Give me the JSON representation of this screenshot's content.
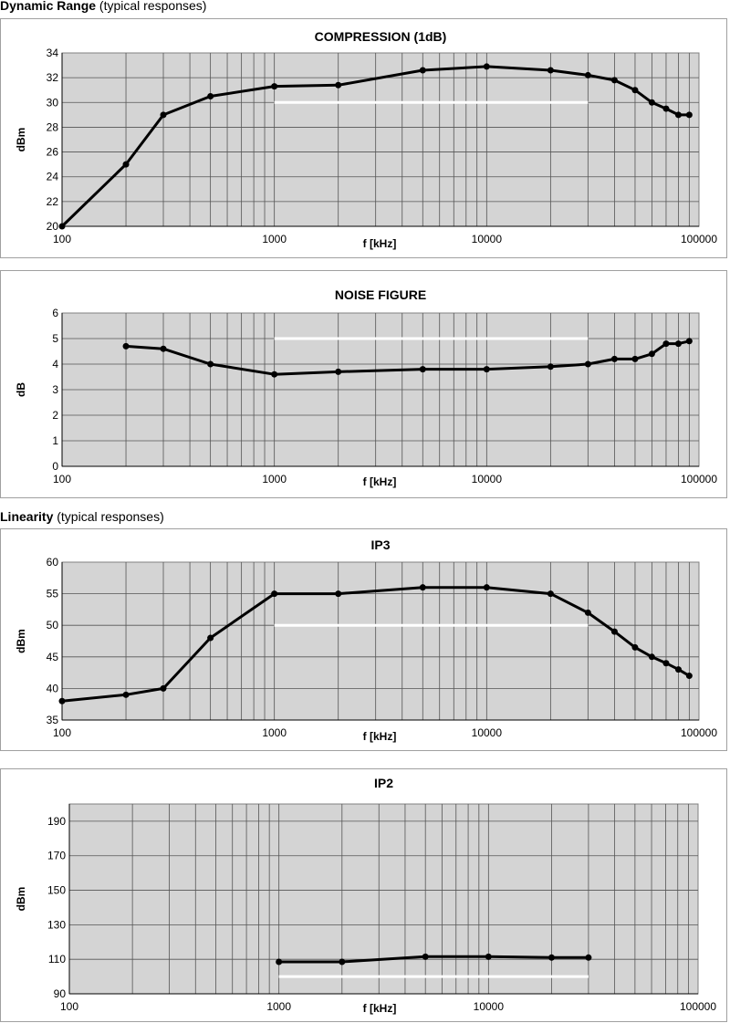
{
  "headings": [
    {
      "bold": "Dynamic Range",
      "normal": " (typical responses)"
    },
    {
      "bold": "Linearity",
      "normal": " (typical responses)"
    }
  ],
  "chart_data": [
    {
      "type": "line",
      "title": "COMPRESSION (1dB)",
      "xlabel": "f [kHz]",
      "ylabel": "dBm",
      "xscale": "log",
      "xlim": [
        100,
        100000
      ],
      "xticks": [
        "100",
        "1000",
        "10000",
        "100000"
      ],
      "ylim": [
        20,
        34
      ],
      "yticks": [
        20,
        22,
        24,
        26,
        28,
        30,
        32,
        34
      ],
      "grid": true,
      "x": [
        100,
        200,
        300,
        500,
        1000,
        2000,
        5000,
        10000,
        20000,
        30000,
        40000,
        50000,
        60000,
        70000,
        80000,
        90000
      ],
      "y": [
        20,
        25,
        29,
        30.5,
        31.3,
        31.4,
        32.6,
        32.9,
        32.6,
        32.2,
        31.8,
        31,
        30,
        29.5,
        29,
        29
      ],
      "reference": {
        "x": [
          1000,
          30000
        ],
        "y": 30,
        "color": "#ffffff"
      }
    },
    {
      "type": "line",
      "title": "NOISE FIGURE",
      "xlabel": "f [kHz]",
      "ylabel": "dB",
      "xscale": "log",
      "xlim": [
        100,
        100000
      ],
      "xticks": [
        "100",
        "1000",
        "10000",
        "100000"
      ],
      "ylim": [
        0,
        6
      ],
      "yticks": [
        0,
        1,
        2,
        3,
        4,
        5,
        6
      ],
      "grid": true,
      "x": [
        200,
        300,
        500,
        1000,
        2000,
        5000,
        10000,
        20000,
        30000,
        40000,
        50000,
        60000,
        70000,
        80000,
        90000
      ],
      "y": [
        4.7,
        4.6,
        4.0,
        3.6,
        3.7,
        3.8,
        3.8,
        3.9,
        4.0,
        4.2,
        4.2,
        4.4,
        4.8,
        4.8,
        4.9
      ],
      "reference": {
        "x": [
          1000,
          30000
        ],
        "y": 5,
        "color": "#ffffff"
      }
    },
    {
      "type": "line",
      "title": "IP3",
      "xlabel": "f [kHz]",
      "ylabel": "dBm",
      "xscale": "log",
      "xlim": [
        100,
        100000
      ],
      "xticks": [
        "100",
        "1000",
        "10000",
        "100000"
      ],
      "ylim": [
        35,
        60
      ],
      "yticks": [
        35,
        40,
        45,
        50,
        55,
        60
      ],
      "grid": true,
      "x": [
        100,
        200,
        300,
        500,
        1000,
        2000,
        5000,
        10000,
        20000,
        30000,
        40000,
        50000,
        60000,
        70000,
        80000,
        90000
      ],
      "y": [
        38,
        39,
        40,
        48,
        55,
        55,
        56,
        56,
        55,
        52,
        49,
        46.5,
        45,
        44,
        43,
        42
      ],
      "reference": {
        "x": [
          1000,
          30000
        ],
        "y": 50,
        "color": "#ffffff"
      }
    },
    {
      "type": "line",
      "title": "IP2",
      "xlabel": "f [kHz]",
      "ylabel": "dBm",
      "xscale": "log",
      "xlim": [
        100,
        100000
      ],
      "xticks": [
        "100",
        "1000",
        "10000",
        "100000"
      ],
      "ylim": [
        90,
        200
      ],
      "yticks": [
        90,
        110,
        130,
        150,
        170,
        190
      ],
      "grid": true,
      "x": [
        1000,
        2000,
        5000,
        10000,
        20000,
        30000
      ],
      "y": [
        108.5,
        108.5,
        111.5,
        111.5,
        111,
        111
      ],
      "reference": {
        "x": [
          1000,
          30000
        ],
        "y": 100,
        "color": "#ffffff"
      }
    }
  ],
  "colors": {
    "plot_bg": "#d4d4d4",
    "grid": "#555555",
    "line": "#000000"
  }
}
